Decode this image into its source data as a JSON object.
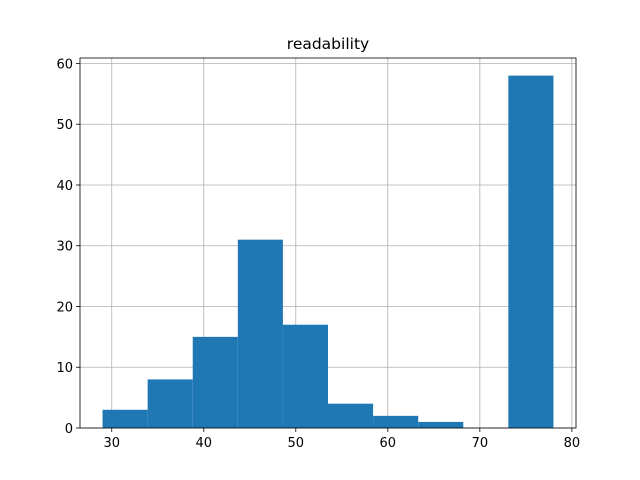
{
  "chart_data": {
    "type": "histogram",
    "title": "readability",
    "bins": [
      29.0,
      33.9,
      38.8,
      43.7,
      48.6,
      53.5,
      58.4,
      63.3,
      68.2,
      73.1,
      78.0
    ],
    "values": [
      3,
      8,
      15,
      31,
      17,
      4,
      2,
      1,
      0,
      58
    ],
    "color": "#1f77b4",
    "xlim": [
      26.55,
      80.45
    ],
    "xticks": [
      30,
      40,
      50,
      60,
      70,
      80
    ],
    "ylim": [
      0,
      60.9
    ],
    "yticks": [
      0,
      10,
      20,
      30,
      40,
      50,
      60
    ],
    "grid": true
  }
}
